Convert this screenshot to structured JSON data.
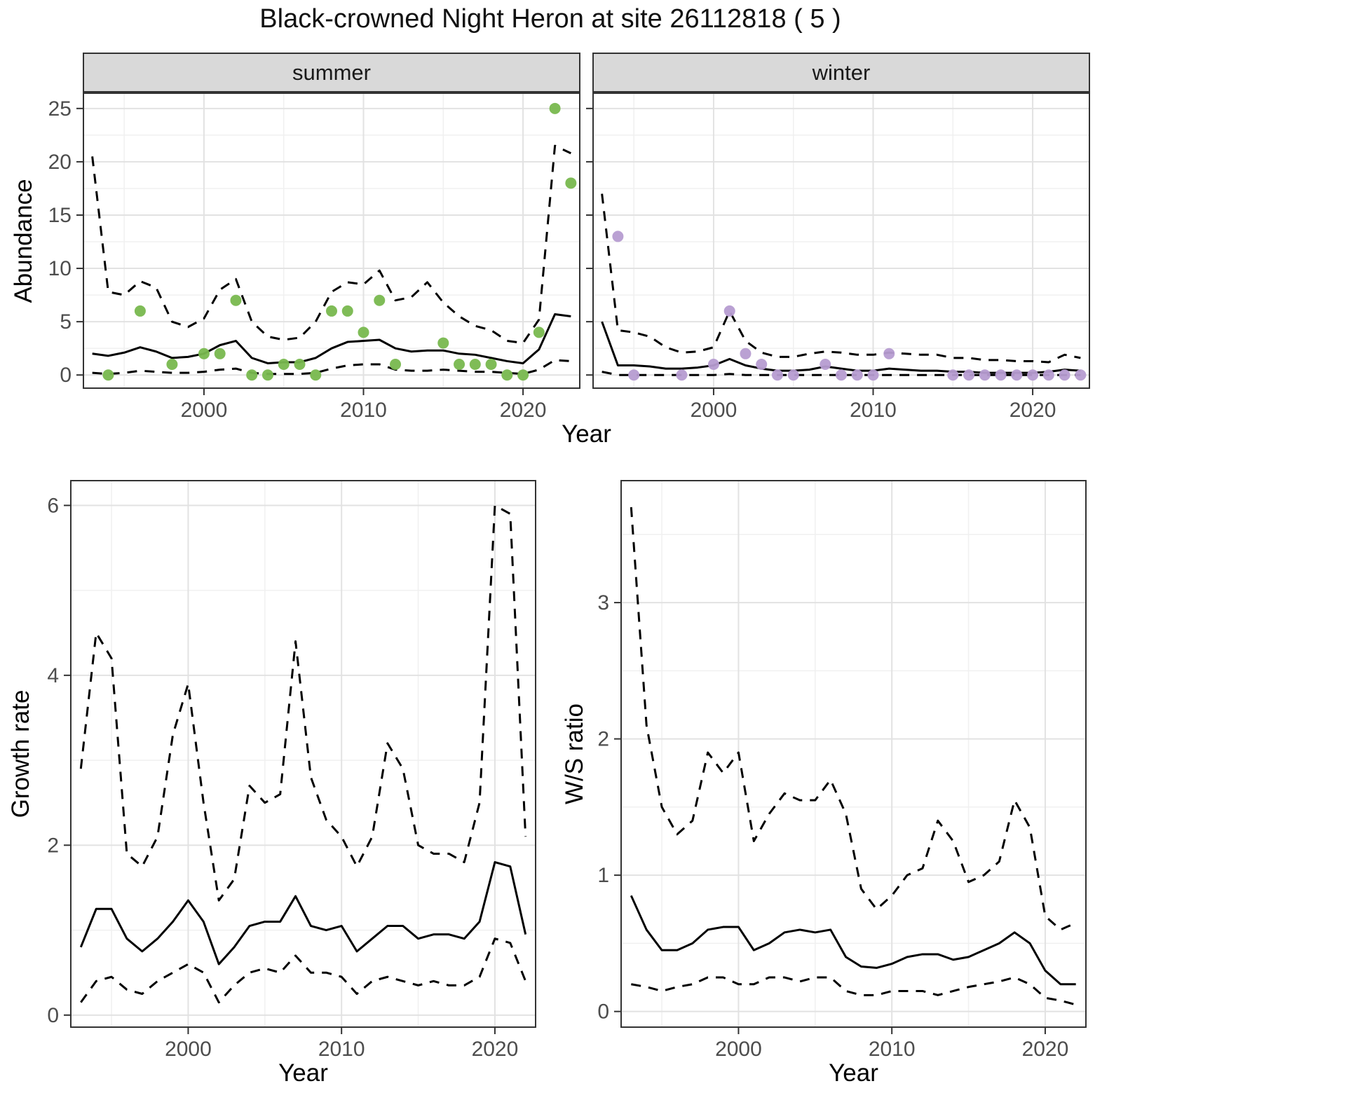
{
  "title": "Black-crowned Night Heron at site 26112818 ( 5 )",
  "colors": {
    "summer_point": "#78b84e",
    "winter_point": "#b69cd1",
    "line": "#000000",
    "grid_major": "#e2e2e2",
    "grid_minor": "#f0f0f0",
    "strip_bg": "#d9d9d9",
    "panel_border": "#333333",
    "tick_text": "#4d4d4d"
  },
  "chart_data": [
    {
      "id": "abundance-summer",
      "type": "line",
      "facet_label": "summer",
      "ylabel": "Abundance",
      "xlabel": "Year",
      "xlim": [
        1992.4,
        2023.6
      ],
      "ylim": [
        -1.3,
        26.5
      ],
      "xticks": [
        2000,
        2010,
        2020
      ],
      "yticks": [
        0,
        5,
        10,
        15,
        20,
        25
      ],
      "x": [
        1993,
        1994,
        1995,
        1996,
        1997,
        1998,
        1999,
        2000,
        2001,
        2002,
        2003,
        2004,
        2005,
        2006,
        2007,
        2008,
        2009,
        2010,
        2011,
        2012,
        2013,
        2014,
        2015,
        2016,
        2017,
        2018,
        2019,
        2020,
        2021,
        2022,
        2023
      ],
      "series": [
        {
          "name": "median_estimate",
          "style": "solid",
          "values": [
            2.0,
            1.8,
            2.1,
            2.6,
            2.2,
            1.6,
            1.7,
            2.0,
            2.8,
            3.2,
            1.6,
            1.1,
            1.2,
            1.2,
            1.6,
            2.5,
            3.1,
            3.2,
            3.3,
            2.5,
            2.2,
            2.3,
            2.3,
            2.0,
            1.9,
            1.6,
            1.3,
            1.1,
            2.4,
            5.7,
            5.5
          ]
        },
        {
          "name": "upper_ci",
          "style": "dashed",
          "values": [
            20.5,
            7.8,
            7.5,
            8.8,
            8.2,
            5.0,
            4.5,
            5.3,
            8.0,
            9.0,
            5.0,
            3.6,
            3.3,
            3.5,
            5.0,
            7.8,
            8.7,
            8.5,
            9.8,
            7.0,
            7.3,
            8.7,
            6.8,
            5.5,
            4.6,
            4.2,
            3.2,
            3.0,
            5.2,
            21.5,
            20.8
          ]
        },
        {
          "name": "lower_ci",
          "style": "dashed",
          "values": [
            0.2,
            0.1,
            0.2,
            0.4,
            0.3,
            0.2,
            0.2,
            0.3,
            0.5,
            0.6,
            0.2,
            0.1,
            0.1,
            0.1,
            0.2,
            0.6,
            0.9,
            1.0,
            1.0,
            0.5,
            0.4,
            0.4,
            0.5,
            0.4,
            0.3,
            0.3,
            0.2,
            0.1,
            0.5,
            1.4,
            1.3
          ]
        }
      ],
      "points": {
        "name": "observed_counts",
        "color_key": "summer_point",
        "x": [
          1994,
          1996,
          1998,
          2000,
          2001,
          2002,
          2003,
          2004,
          2005,
          2006,
          2007,
          2008,
          2009,
          2010,
          2011,
          2012,
          2015,
          2016,
          2017,
          2018,
          2019,
          2020,
          2021,
          2022,
          2023
        ],
        "y": [
          0,
          6,
          1,
          2,
          2,
          7,
          0,
          0,
          1,
          1,
          0,
          6,
          6,
          4,
          7,
          1,
          3,
          1,
          1,
          1,
          0,
          0,
          4,
          25,
          18
        ]
      }
    },
    {
      "id": "abundance-winter",
      "type": "line",
      "facet_label": "winter",
      "ylabel": "Abundance",
      "xlabel": "Year",
      "xlim": [
        1992.4,
        2023.6
      ],
      "ylim": [
        -1.3,
        26.5
      ],
      "xticks": [
        2000,
        2010,
        2020
      ],
      "yticks": [
        0,
        5,
        10,
        15,
        20,
        25
      ],
      "x": [
        1993,
        1994,
        1995,
        1996,
        1997,
        1998,
        1999,
        2000,
        2001,
        2002,
        2003,
        2004,
        2005,
        2006,
        2007,
        2008,
        2009,
        2010,
        2011,
        2012,
        2013,
        2014,
        2015,
        2016,
        2017,
        2018,
        2019,
        2020,
        2021,
        2022,
        2023
      ],
      "series": [
        {
          "name": "median_estimate",
          "style": "solid",
          "values": [
            5.0,
            0.9,
            0.9,
            0.8,
            0.6,
            0.6,
            0.7,
            0.9,
            1.5,
            0.9,
            0.6,
            0.4,
            0.4,
            0.5,
            0.8,
            0.6,
            0.4,
            0.4,
            0.6,
            0.5,
            0.4,
            0.4,
            0.3,
            0.3,
            0.2,
            0.2,
            0.2,
            0.2,
            0.3,
            0.5,
            0.4
          ]
        },
        {
          "name": "upper_ci",
          "style": "dashed",
          "values": [
            17.0,
            4.2,
            4.0,
            3.6,
            2.6,
            2.1,
            2.2,
            2.6,
            6.0,
            3.2,
            2.1,
            1.7,
            1.7,
            2.0,
            2.2,
            2.1,
            1.9,
            1.9,
            2.1,
            2.0,
            1.9,
            1.9,
            1.6,
            1.6,
            1.4,
            1.4,
            1.3,
            1.3,
            1.2,
            1.9,
            1.6
          ]
        },
        {
          "name": "lower_ci",
          "style": "dashed",
          "values": [
            0.3,
            0.0,
            0.0,
            0.0,
            0.0,
            0.0,
            0.0,
            0.0,
            0.1,
            0.0,
            0.0,
            0.0,
            0.0,
            0.0,
            0.0,
            0.0,
            0.0,
            0.0,
            0.0,
            0.0,
            0.0,
            0.0,
            0.0,
            0.0,
            0.0,
            0.0,
            0.0,
            0.0,
            0.0,
            0.0,
            0.0
          ]
        }
      ],
      "points": {
        "name": "observed_counts",
        "color_key": "winter_point",
        "x": [
          1994,
          1995,
          1998,
          2000,
          2001,
          2002,
          2003,
          2004,
          2005,
          2007,
          2008,
          2009,
          2010,
          2011,
          2015,
          2016,
          2017,
          2018,
          2019,
          2020,
          2021,
          2022,
          2023
        ],
        "y": [
          13,
          0,
          0,
          1,
          6,
          2,
          1,
          0,
          0,
          1,
          0,
          0,
          0,
          2,
          0,
          0,
          0,
          0,
          0,
          0,
          0,
          0,
          0
        ]
      }
    },
    {
      "id": "growth-rate",
      "type": "line",
      "facet_label": "",
      "ylabel": "Growth rate",
      "xlabel": "Year",
      "xlim": [
        1992.3,
        2022.7
      ],
      "ylim": [
        -0.15,
        6.3
      ],
      "xticks": [
        2000,
        2010,
        2020
      ],
      "yticks": [
        0,
        2,
        4,
        6
      ],
      "x": [
        1993,
        1994,
        1995,
        1996,
        1997,
        1998,
        1999,
        2000,
        2001,
        2002,
        2003,
        2004,
        2005,
        2006,
        2007,
        2008,
        2009,
        2010,
        2011,
        2012,
        2013,
        2014,
        2015,
        2016,
        2017,
        2018,
        2019,
        2020,
        2021,
        2022
      ],
      "series": [
        {
          "name": "median_estimate",
          "style": "solid",
          "values": [
            0.8,
            1.25,
            1.25,
            0.9,
            0.75,
            0.9,
            1.1,
            1.35,
            1.1,
            0.6,
            0.8,
            1.05,
            1.1,
            1.1,
            1.4,
            1.05,
            1.0,
            1.05,
            0.75,
            0.9,
            1.05,
            1.05,
            0.9,
            0.95,
            0.95,
            0.9,
            1.1,
            1.8,
            1.75,
            0.95
          ]
        },
        {
          "name": "upper_ci",
          "style": "dashed",
          "values": [
            2.9,
            4.5,
            4.2,
            1.9,
            1.75,
            2.1,
            3.3,
            3.9,
            2.5,
            1.35,
            1.6,
            2.7,
            2.5,
            2.6,
            4.4,
            2.8,
            2.3,
            2.1,
            1.75,
            2.1,
            3.2,
            2.9,
            2.0,
            1.9,
            1.9,
            1.8,
            2.5,
            6.0,
            5.9,
            2.1
          ]
        },
        {
          "name": "lower_ci",
          "style": "dashed",
          "values": [
            0.15,
            0.4,
            0.45,
            0.3,
            0.25,
            0.4,
            0.5,
            0.6,
            0.5,
            0.15,
            0.35,
            0.5,
            0.55,
            0.5,
            0.7,
            0.5,
            0.5,
            0.45,
            0.25,
            0.4,
            0.45,
            0.4,
            0.35,
            0.4,
            0.35,
            0.35,
            0.45,
            0.9,
            0.85,
            0.4
          ]
        }
      ],
      "points": null
    },
    {
      "id": "ws-ratio",
      "type": "line",
      "facet_label": "",
      "ylabel": "W/S ratio",
      "xlabel": "Year",
      "xlim": [
        1992.3,
        2022.7
      ],
      "ylim": [
        -0.12,
        3.9
      ],
      "xticks": [
        2000,
        2010,
        2020
      ],
      "yticks": [
        0,
        1,
        2,
        3
      ],
      "x": [
        1993,
        1994,
        1995,
        1996,
        1997,
        1998,
        1999,
        2000,
        2001,
        2002,
        2003,
        2004,
        2005,
        2006,
        2007,
        2008,
        2009,
        2010,
        2011,
        2012,
        2013,
        2014,
        2015,
        2016,
        2017,
        2018,
        2019,
        2020,
        2021,
        2022
      ],
      "series": [
        {
          "name": "median_estimate",
          "style": "solid",
          "values": [
            0.85,
            0.6,
            0.45,
            0.45,
            0.5,
            0.6,
            0.62,
            0.62,
            0.45,
            0.5,
            0.58,
            0.6,
            0.58,
            0.6,
            0.4,
            0.33,
            0.32,
            0.35,
            0.4,
            0.42,
            0.42,
            0.38,
            0.4,
            0.45,
            0.5,
            0.58,
            0.5,
            0.3,
            0.2,
            0.2
          ]
        },
        {
          "name": "upper_ci",
          "style": "dashed",
          "values": [
            3.7,
            2.1,
            1.5,
            1.3,
            1.4,
            1.9,
            1.75,
            1.9,
            1.25,
            1.45,
            1.6,
            1.55,
            1.55,
            1.7,
            1.45,
            0.9,
            0.75,
            0.85,
            1.0,
            1.05,
            1.4,
            1.25,
            0.95,
            1.0,
            1.1,
            1.55,
            1.35,
            0.7,
            0.6,
            0.65
          ]
        },
        {
          "name": "lower_ci",
          "style": "dashed",
          "values": [
            0.2,
            0.18,
            0.15,
            0.18,
            0.2,
            0.25,
            0.25,
            0.2,
            0.2,
            0.25,
            0.25,
            0.22,
            0.25,
            0.25,
            0.15,
            0.12,
            0.12,
            0.15,
            0.15,
            0.15,
            0.12,
            0.15,
            0.18,
            0.2,
            0.22,
            0.25,
            0.2,
            0.1,
            0.08,
            0.05
          ]
        }
      ],
      "points": null
    }
  ]
}
